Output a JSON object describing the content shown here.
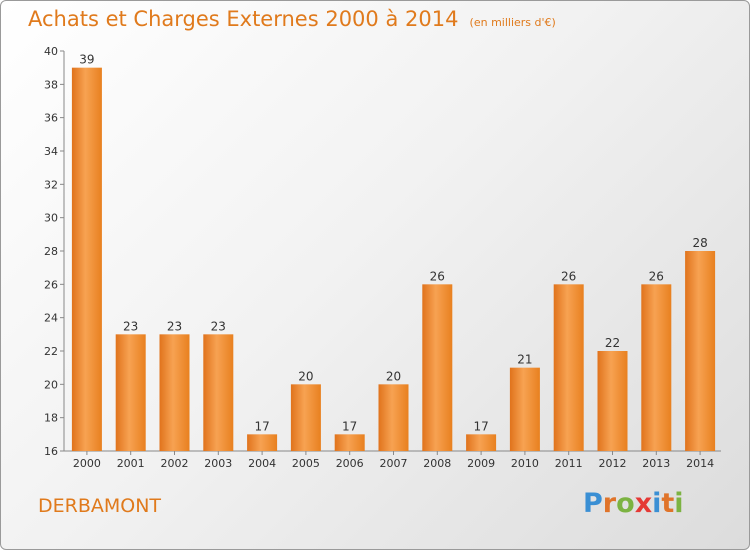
{
  "chart_data": {
    "type": "bar",
    "title": "Achats et Charges Externes 2000 à 2014",
    "subtitle": "(en milliers d'€)",
    "categories": [
      "2000",
      "2001",
      "2002",
      "2003",
      "2004",
      "2005",
      "2006",
      "2007",
      "2008",
      "2009",
      "2010",
      "2011",
      "2012",
      "2013",
      "2014"
    ],
    "values": [
      39,
      23,
      23,
      23,
      17,
      20,
      17,
      20,
      26,
      17,
      21,
      26,
      22,
      26,
      28
    ],
    "ylim": [
      16,
      40
    ],
    "yticks": [
      16,
      18,
      20,
      22,
      24,
      26,
      28,
      30,
      32,
      34,
      36,
      38,
      40
    ],
    "grid": false,
    "bar_color": "#f0892c"
  },
  "footer": {
    "commune": "DERBAMONT",
    "logo_text": "Proxiti",
    "logo_colors": [
      "#3a8fd4",
      "#e0742a",
      "#7cb342",
      "#e53935",
      "#3a8fd4",
      "#e0742a",
      "#7cb342"
    ]
  }
}
